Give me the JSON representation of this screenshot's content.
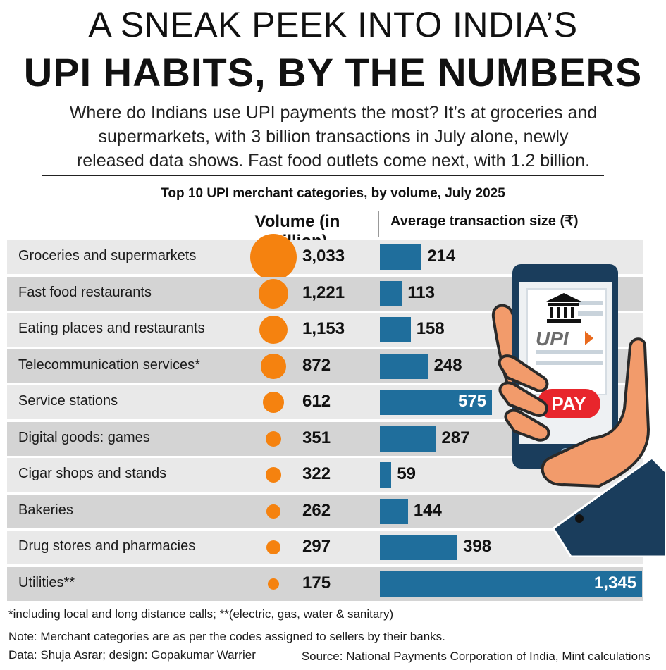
{
  "title_line1": "A SNEAK PEEK INTO INDIA’S",
  "title_line2": "UPI HABITS, BY THE NUMBERS",
  "intro_line1": "Where do Indians use UPI payments the most? It’s at groceries and",
  "intro_line2": "supermarkets, with 3 billion transactions in July alone, newly",
  "intro_line3": "released data shows. Fast food outlets come next, with 1.2 billion.",
  "chart_data": {
    "type": "table",
    "title": "Top 10 UPI merchant categories, by volume, July 2025",
    "columns": [
      "Volume (in million)",
      "Average transaction size (₹)"
    ],
    "categories": [
      "Groceries and supermarkets",
      "Fast food  restaurants",
      "Eating places and restaurants",
      "Telecommunication services*",
      "Service stations",
      "Digital goods: games",
      "Cigar shops and stands",
      "Bakeries",
      "Drug stores and pharmacies",
      "Utilities**"
    ],
    "volume_labels": [
      "3,033",
      "1,221",
      "1,153",
      "872",
      "612",
      "351",
      "322",
      "262",
      "297",
      "175"
    ],
    "volume": [
      3033,
      1221,
      1153,
      872,
      612,
      351,
      322,
      262,
      297,
      175
    ],
    "avg_labels": [
      "214",
      "113",
      "158",
      "248",
      "575",
      "287",
      "59",
      "144",
      "398",
      "1,345"
    ],
    "avg_size": [
      214,
      113,
      158,
      248,
      575,
      287,
      59,
      144,
      398,
      1345
    ],
    "bubble_color": "#f5820f",
    "bar_color": "#1f6e9c"
  },
  "phone": {
    "pay_label": "PAY",
    "upi_label": "UPI"
  },
  "footnote1": "*including local and long distance calls; **(electric, gas, water & sanitary)",
  "footnote2": "Note: Merchant categories are as per the codes assigned to sellers by their banks.",
  "credit": "Data: Shuja Asrar; design: Gopakumar Warrier",
  "source": "Source: National Payments Corporation of India, Mint calculations"
}
